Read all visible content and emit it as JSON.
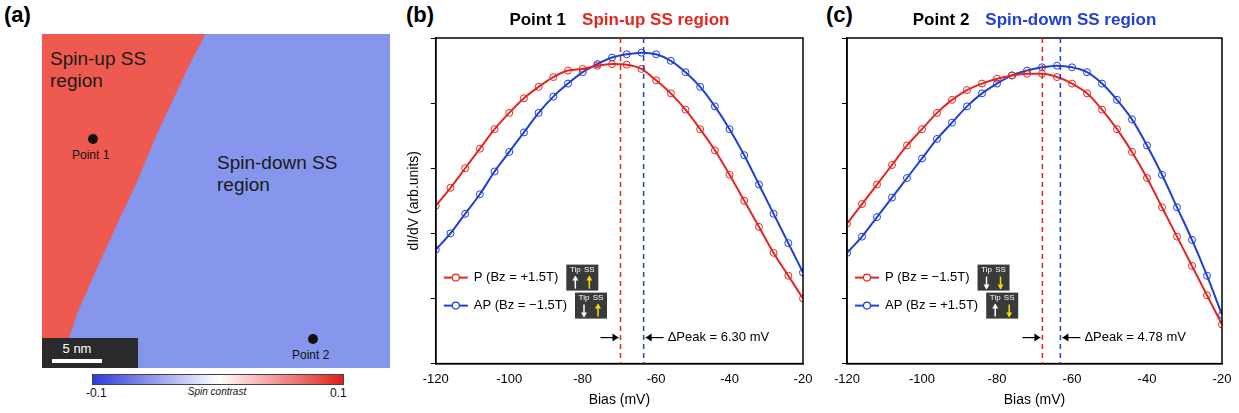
{
  "map": {
    "panel": "(a)",
    "type": "image",
    "regions": [
      {
        "label": "Spin-up SS region",
        "color": "#ee5a50"
      },
      {
        "label": "Spin-down SS region",
        "color": "#8596ec"
      }
    ],
    "points": [
      {
        "label": "Point 1"
      },
      {
        "label": "Point 2"
      }
    ],
    "scale_bar": "5 nm",
    "colorbar": {
      "label": "Spin contrast",
      "range": [
        -0.1,
        0.1
      ],
      "ticks": [
        -0.1,
        0.1
      ]
    }
  },
  "chart_data": [
    {
      "panel": "(b)",
      "type": "line",
      "title": [
        {
          "text": "Point 1",
          "color": "#000000"
        },
        {
          "text": "Spin-up SS region",
          "color": "#e3261f"
        }
      ],
      "x_label": "Bias (mV)",
      "y_label": "dI/dV (arb.units)",
      "x": [
        -120,
        -116,
        -112,
        -108,
        -104,
        -100,
        -96,
        -92,
        -88,
        -84,
        -80,
        -76,
        -72,
        -68,
        -64,
        -60,
        -56,
        -52,
        -48,
        -44,
        -40,
        -36,
        -32,
        -28,
        -24,
        -20
      ],
      "xlim": [
        -120,
        -20
      ],
      "xticks": [
        -120,
        -100,
        -80,
        -60,
        -40,
        -20
      ],
      "ylim": [
        0,
        1
      ],
      "yticks": [
        0,
        0.2,
        0.4,
        0.6,
        0.8,
        1
      ],
      "tick_labels": "x",
      "grid": false,
      "legend": "bottom left",
      "annotation": "ΔPeak = 6.30 mV",
      "inset_labels": [
        "Tip",
        "SS"
      ],
      "series": [
        {
          "name": "P (Bz = +1.5T)",
          "color": "#e3261f",
          "marker": "circle",
          "line_style": "solid",
          "peak": -69.7,
          "tip": "up",
          "ss": "up",
          "values": [
            0.485,
            0.54,
            0.6,
            0.66,
            0.72,
            0.77,
            0.815,
            0.85,
            0.88,
            0.9,
            0.905,
            0.915,
            0.92,
            0.918,
            0.905,
            0.87,
            0.83,
            0.78,
            0.72,
            0.655,
            0.58,
            0.5,
            0.42,
            0.34,
            0.27,
            0.2
          ]
        },
        {
          "name": "AP (Bz = −1.5T)",
          "color": "#1f3fd6",
          "marker": "circle",
          "line_style": "solid",
          "peak": -63.4,
          "tip": "down",
          "ss": "up",
          "values": [
            0.35,
            0.4,
            0.46,
            0.52,
            0.59,
            0.65,
            0.71,
            0.77,
            0.82,
            0.86,
            0.895,
            0.92,
            0.94,
            0.95,
            0.955,
            0.95,
            0.93,
            0.895,
            0.85,
            0.79,
            0.72,
            0.64,
            0.55,
            0.46,
            0.37,
            0.28
          ]
        }
      ]
    },
    {
      "panel": "(c)",
      "type": "line",
      "title": [
        {
          "text": "Point 2",
          "color": "#000000"
        },
        {
          "text": "Spin-down SS region",
          "color": "#1f3fd6"
        }
      ],
      "x_label": "Bias (mV)",
      "x": [
        -120,
        -116,
        -112,
        -108,
        -104,
        -100,
        -96,
        -92,
        -88,
        -84,
        -80,
        -76,
        -72,
        -68,
        -64,
        -60,
        -56,
        -52,
        -48,
        -44,
        -40,
        -36,
        -32,
        -28,
        -24,
        -20
      ],
      "xlim": [
        -120,
        -20
      ],
      "xticks": [
        -120,
        -100,
        -80,
        -60,
        -40,
        -20
      ],
      "ylim": [
        0,
        1
      ],
      "yticks": [
        0,
        0.2,
        0.4,
        0.6,
        0.8,
        1
      ],
      "tick_labels": "x",
      "grid": false,
      "legend": "bottom left",
      "annotation": "ΔPeak = 4.78 mV",
      "inset_labels": [
        "Tip",
        "SS"
      ],
      "series": [
        {
          "name": "P (Bz = −1.5T)",
          "color": "#e3261f",
          "marker": "circle",
          "line_style": "solid",
          "peak": -67.9,
          "tip": "down",
          "ss": "down",
          "values": [
            0.43,
            0.49,
            0.55,
            0.61,
            0.67,
            0.72,
            0.77,
            0.81,
            0.84,
            0.86,
            0.875,
            0.885,
            0.89,
            0.89,
            0.88,
            0.86,
            0.83,
            0.78,
            0.72,
            0.65,
            0.57,
            0.48,
            0.39,
            0.3,
            0.21,
            0.12
          ]
        },
        {
          "name": "AP (Bz = +1.5T)",
          "color": "#1f3fd6",
          "marker": "circle",
          "line_style": "solid",
          "peak": -63.1,
          "tip": "up",
          "ss": "down",
          "values": [
            0.34,
            0.39,
            0.45,
            0.51,
            0.57,
            0.63,
            0.69,
            0.74,
            0.79,
            0.83,
            0.86,
            0.885,
            0.9,
            0.91,
            0.915,
            0.91,
            0.895,
            0.86,
            0.81,
            0.75,
            0.67,
            0.58,
            0.48,
            0.38,
            0.27,
            0.15
          ]
        }
      ]
    }
  ]
}
